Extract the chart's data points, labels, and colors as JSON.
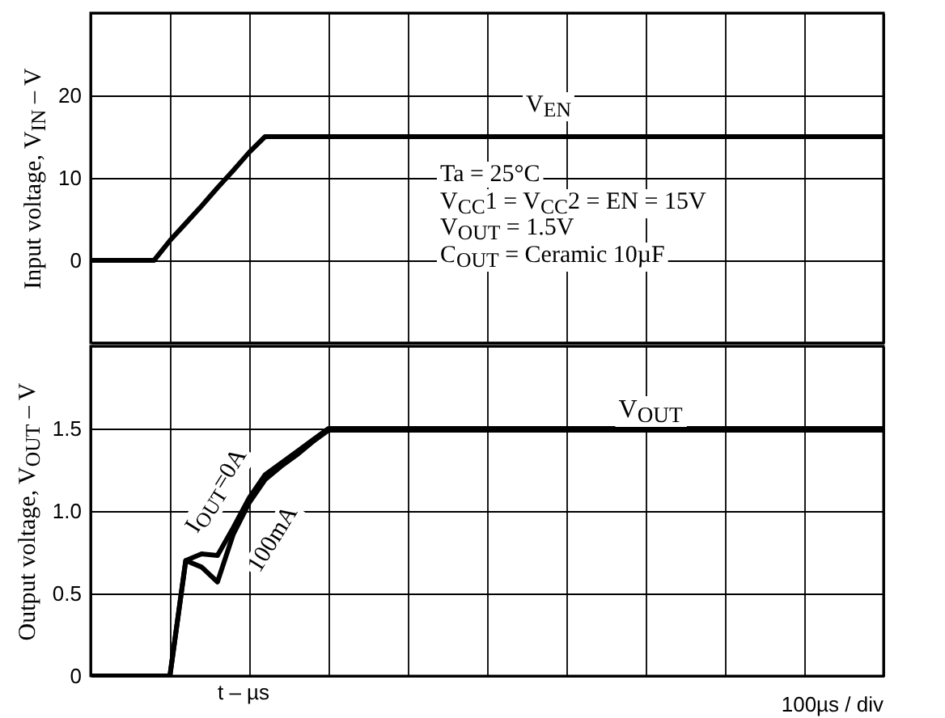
{
  "chart_data": [
    {
      "type": "line",
      "ylabel": "Input voltage, V$_{IN}$ – V",
      "categories": [
        null,
        null,
        null,
        null,
        null,
        null,
        null,
        null,
        null,
        null,
        null,
        null,
        null,
        null,
        null,
        null,
        null,
        null,
        null,
        null,
        null,
        null,
        null,
        null,
        null,
        null,
        null,
        null,
        null,
        null,
        null,
        null,
        null,
        null,
        null,
        null,
        null,
        null,
        null,
        null,
        null,
        null,
        null,
        null,
        null,
        null,
        null,
        null,
        null,
        null,
        null
      ],
      "ylim": [
        -10,
        30
      ],
      "yticks": [
        {
          "value": -10,
          "label": null
        },
        0,
        10,
        20,
        {
          "value": 30,
          "label": null
        }
      ],
      "tick_labels": "y",
      "grid": true,
      "legend": false,
      "series": [
        {
          "name": "V$_{EN}$",
          "color": "#000000",
          "values": [
            0,
            0,
            0,
            0,
            0,
            2.4,
            4.5,
            6.6,
            8.8,
            10.9,
            13.1,
            15,
            15,
            15,
            15,
            15,
            15,
            15,
            15,
            15,
            15,
            15,
            15,
            15,
            15,
            15,
            15,
            15,
            15,
            15,
            15,
            15,
            15,
            15,
            15,
            15,
            15,
            15,
            15,
            15,
            15,
            15,
            15,
            15,
            15,
            15,
            15,
            15,
            15,
            15,
            15
          ]
        }
      ],
      "annotations": [
        "Ta = 25°C",
        "V$_{CC}$1 = V$_{CC}$2 = EN = 15V",
        "V$_{OUT}$ = 1.5V",
        "C$_{OUT}$ = Ceramic 10µF"
      ]
    },
    {
      "type": "line",
      "xlabel": "t – µs",
      "ylabel": "Output voltage, V$_{OUT}$ – V",
      "categories": [
        null,
        null,
        null,
        null,
        null,
        null,
        null,
        null,
        null,
        null,
        null,
        null,
        null,
        null,
        null,
        null,
        null,
        null,
        null,
        null,
        null,
        null,
        null,
        null,
        null,
        null,
        null,
        null,
        null,
        null,
        null,
        null,
        null,
        null,
        null,
        null,
        null,
        null,
        null,
        null,
        null,
        null,
        null,
        null,
        null,
        null,
        null,
        null,
        null,
        null,
        null
      ],
      "ylim": [
        0,
        2
      ],
      "yticks": [
        0,
        0.5,
        {
          "value": 1,
          "label": "1.0"
        },
        1.5,
        {
          "value": 2,
          "label": null
        }
      ],
      "tick_labels": "y",
      "grid": true,
      "legend": false,
      "series": [
        {
          "name": "I$_{OUT}$=0A",
          "color": "#000000",
          "values": [
            0,
            0,
            0,
            0,
            0,
            0,
            0.7,
            0.74,
            0.73,
            0.9,
            1.08,
            1.22,
            1.29,
            1.36,
            1.43,
            1.5,
            1.5,
            1.5,
            1.5,
            1.5,
            1.5,
            1.5,
            1.5,
            1.5,
            1.5,
            1.5,
            1.5,
            1.5,
            1.5,
            1.5,
            1.5,
            1.5,
            1.5,
            1.5,
            1.5,
            1.5,
            1.5,
            1.5,
            1.5,
            1.5,
            1.5,
            1.5,
            1.5,
            1.5,
            1.5,
            1.5,
            1.5,
            1.5,
            1.5,
            1.5,
            1.5
          ]
        },
        {
          "name": "100mA",
          "color": "#000000",
          "values": [
            0,
            0,
            0,
            0,
            0,
            0,
            0.7,
            0.66,
            0.57,
            0.86,
            1.05,
            1.19,
            1.27,
            1.34,
            1.42,
            1.49,
            1.49,
            1.49,
            1.49,
            1.49,
            1.49,
            1.49,
            1.49,
            1.49,
            1.49,
            1.49,
            1.49,
            1.49,
            1.49,
            1.49,
            1.49,
            1.49,
            1.49,
            1.49,
            1.49,
            1.49,
            1.49,
            1.49,
            1.49,
            1.49,
            1.49,
            1.49,
            1.49,
            1.49,
            1.49,
            1.49,
            1.49,
            1.49,
            1.49,
            1.49,
            1.49
          ]
        }
      ],
      "annotations": [
        "V$_{OUT}$",
        "100µs / div"
      ]
    }
  ]
}
